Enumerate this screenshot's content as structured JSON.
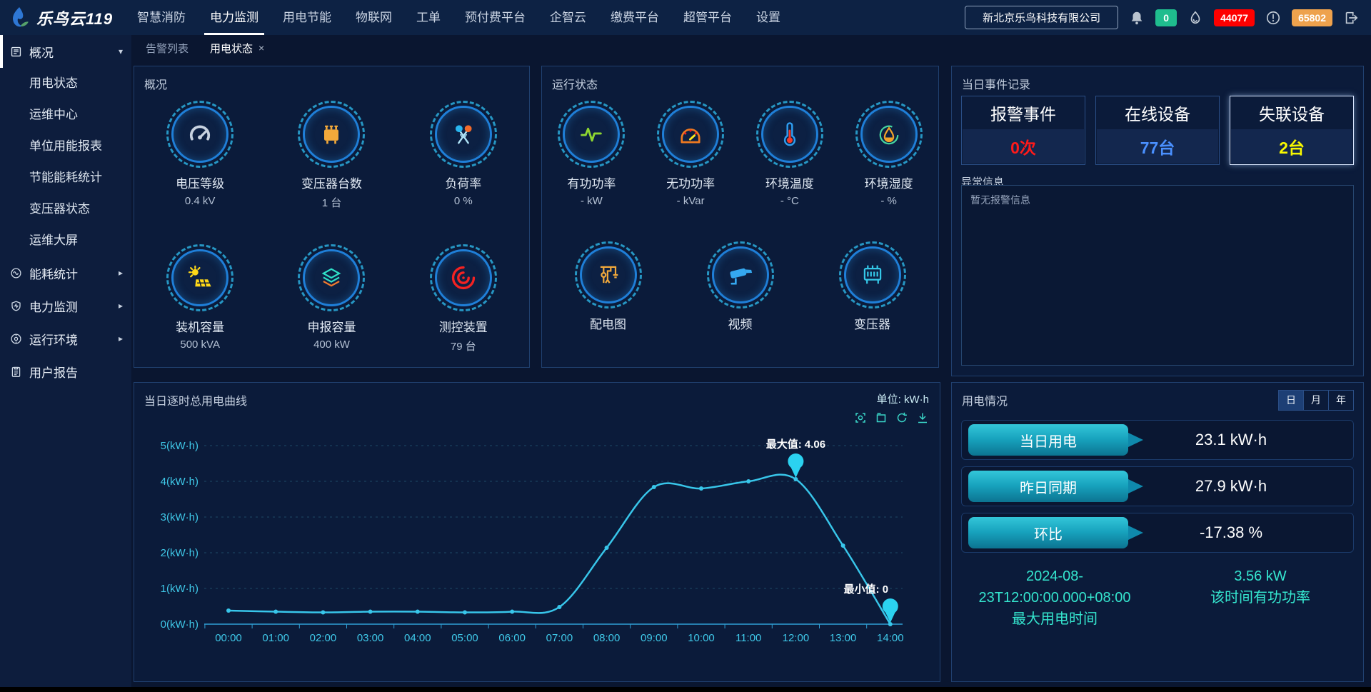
{
  "navbar": {
    "brand": "乐鸟云119",
    "items": [
      {
        "label": "智慧消防",
        "active": false
      },
      {
        "label": "电力监测",
        "active": true
      },
      {
        "label": "用电节能",
        "active": false
      },
      {
        "label": "物联网",
        "active": false
      },
      {
        "label": "工单",
        "active": false
      },
      {
        "label": "预付费平台",
        "active": false
      },
      {
        "label": "企智云",
        "active": false
      },
      {
        "label": "缴费平台",
        "active": false
      },
      {
        "label": "超管平台",
        "active": false
      },
      {
        "label": "设置",
        "active": false
      }
    ],
    "company": "新北京乐鸟科技有限公司",
    "badges": {
      "bell_count": "0",
      "bell_count_color": "#1fbd8e",
      "alarm_count": "44077",
      "alarm_count_color": "#fe0000",
      "warn_count": "65802",
      "warn_count_color": "#eea24d"
    }
  },
  "sidebar": {
    "groups": [
      {
        "label": "概况",
        "icon": "overview-icon",
        "active": true,
        "expanded": true,
        "children": [
          "用电状态",
          "运维中心",
          "单位用能报表",
          "节能能耗统计",
          "变压器状态",
          "运维大屏"
        ]
      },
      {
        "label": "能耗统计",
        "icon": "energy-stats-icon",
        "expandable": true,
        "children": []
      },
      {
        "label": "电力监测",
        "icon": "power-monitor-icon",
        "expandable": true,
        "children": []
      },
      {
        "label": "运行环境",
        "icon": "environment-icon",
        "expandable": true,
        "children": []
      },
      {
        "label": "用户报告",
        "icon": "report-icon",
        "expandable": false,
        "children": []
      }
    ]
  },
  "tabs": [
    {
      "label": "告警列表",
      "active": false,
      "closable": false
    },
    {
      "label": "用电状态",
      "active": true,
      "closable": true
    }
  ],
  "panels": {
    "overview": {
      "title": "概况",
      "items": [
        {
          "icon": "gauge-icon",
          "label": "电压等级",
          "value": "0.4 kV"
        },
        {
          "icon": "transformer-icon",
          "label": "变压器台数",
          "value": "1 台"
        },
        {
          "icon": "load-rate-icon",
          "label": "负荷率",
          "value": "0 %"
        },
        {
          "icon": "solar-icon",
          "label": "装机容量",
          "value": "500 kVA"
        },
        {
          "icon": "layers-icon",
          "label": "申报容量",
          "value": "400 kW"
        },
        {
          "icon": "target-icon",
          "label": "测控装置",
          "value": "79 台"
        }
      ]
    },
    "runtime": {
      "title": "运行状态",
      "items": [
        {
          "icon": "pulse-icon",
          "label": "有功功率",
          "value": "- kW"
        },
        {
          "icon": "speedometer-icon",
          "label": "无功功率",
          "value": "- kVar"
        },
        {
          "icon": "thermometer-icon",
          "label": "环境温度",
          "value": "- °C"
        },
        {
          "icon": "humidity-icon",
          "label": "环境湿度",
          "value": "- %"
        },
        {
          "icon": "distribution-icon",
          "label": "配电图",
          "value": ""
        },
        {
          "icon": "camera-icon",
          "label": "视频",
          "value": ""
        },
        {
          "icon": "transformer2-icon",
          "label": "变压器",
          "value": ""
        }
      ]
    },
    "events": {
      "title": "当日事件记录",
      "stats": [
        {
          "label": "报警事件",
          "value": "0次",
          "color": "#fe1a1a",
          "highlight": false
        },
        {
          "label": "在线设备",
          "value": "77台",
          "color": "#4a90ff",
          "highlight": false
        },
        {
          "label": "失联设备",
          "value": "2台",
          "color": "#f8f800",
          "highlight": true
        }
      ],
      "abnormal_title": "异常信息",
      "abnormal_empty": "暂无报警信息"
    },
    "chart": {
      "title": "当日逐时总用电曲线",
      "unit_label": "单位: kW·h",
      "toolbar_icons": [
        "zoom-icon",
        "restore-icon",
        "refresh-icon",
        "download-icon"
      ]
    },
    "usage": {
      "title": "用电情况",
      "period_buttons": [
        "日",
        "月",
        "年"
      ],
      "active_period": "日",
      "rows": [
        {
          "label": "当日用电",
          "value": "23.1 kW·h"
        },
        {
          "label": "昨日同期",
          "value": "27.9 kW·h"
        },
        {
          "label": "环比",
          "value": "-17.38 %"
        }
      ],
      "max_time": "2024-08-23T12:00:00.000+08:00",
      "max_time_label": "最大用电时间",
      "power": "3.56 kW",
      "power_label": "该时间有功功率"
    }
  },
  "chart_data": {
    "type": "line",
    "title": "当日逐时总用电曲线",
    "unit": "kW·h",
    "x": [
      "00:00",
      "01:00",
      "02:00",
      "03:00",
      "04:00",
      "05:00",
      "06:00",
      "07:00",
      "08:00",
      "09:00",
      "10:00",
      "11:00",
      "12:00",
      "13:00",
      "14:00"
    ],
    "series": [
      {
        "name": "当日逐时总用电",
        "values": [
          0.38,
          0.35,
          0.33,
          0.35,
          0.35,
          0.33,
          0.35,
          0.48,
          2.14,
          3.84,
          3.8,
          4.0,
          4.06,
          2.2,
          0
        ]
      }
    ],
    "ylim": [
      0,
      5
    ],
    "ytick_suffix": "(kW·h)",
    "grid": "dotted",
    "line_color": "#38c6ea",
    "max_annotation": {
      "label": "最大值: 4.06",
      "index": 12,
      "value": 4.06
    },
    "min_annotation": {
      "label": "最小值: 0",
      "index": 14,
      "value": 0
    }
  }
}
